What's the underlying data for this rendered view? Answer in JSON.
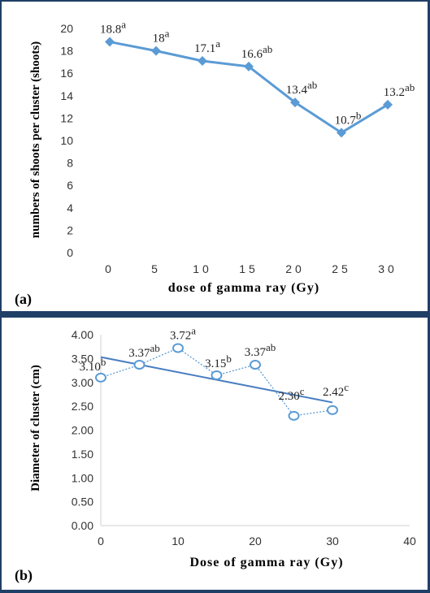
{
  "chart_data": [
    {
      "type": "line",
      "panel_label": "(a)",
      "title": "",
      "xlabel": "dose of gamma ray (Gy)",
      "ylabel": "numbers of shoots per cluster (shoots)",
      "categories": [
        "0",
        "5",
        "10",
        "15",
        "20",
        "25",
        "30"
      ],
      "series": [
        {
          "values": [
            18.8,
            18,
            17.1,
            16.6,
            13.4,
            10.7,
            13.2
          ],
          "value_labels": [
            "18.8",
            "18",
            "17.1",
            "16.6",
            "13.4",
            "10.7",
            "13.2"
          ],
          "letters": [
            "a",
            "a",
            "a",
            "ab",
            "ab",
            "b",
            "ab"
          ]
        }
      ],
      "yticks": [
        "0",
        "2",
        "4",
        "6",
        "8",
        "10",
        "12",
        "14",
        "16",
        "18",
        "20"
      ],
      "ylim": [
        0,
        20
      ],
      "grid": false,
      "legend": "none",
      "line_color": "#5b9bd5"
    },
    {
      "type": "scatter",
      "panel_label": "(b)",
      "title": "",
      "xlabel": "Dose of gamma ray (Gy)",
      "ylabel": "Diameter of cluster (cm)",
      "series": [
        {
          "x": [
            0,
            5,
            10,
            15,
            20,
            25,
            30
          ],
          "y": [
            3.1,
            3.37,
            3.72,
            3.15,
            3.37,
            2.3,
            2.42
          ],
          "value_labels": [
            "3.10",
            "3.37",
            "3.72",
            "3.15",
            "3.37",
            "2.30",
            "2.42"
          ],
          "letters": [
            "b",
            "ab",
            "a",
            "b",
            "ab",
            "c",
            "c"
          ]
        }
      ],
      "trendline": {
        "type": "linear",
        "x": [
          0,
          30
        ],
        "y": [
          3.53,
          2.58
        ]
      },
      "xticks": [
        "0",
        "10",
        "20",
        "30",
        "40"
      ],
      "xlim": [
        0,
        40
      ],
      "yticks": [
        "0.00",
        "0.50",
        "1.00",
        "1.50",
        "2.00",
        "2.50",
        "3.00",
        "3.50",
        "4.00"
      ],
      "ylim": [
        0,
        4
      ],
      "grid": false,
      "legend": "none",
      "line_color": "#4a7ec2",
      "marker_color": "#5b9bd5"
    }
  ]
}
